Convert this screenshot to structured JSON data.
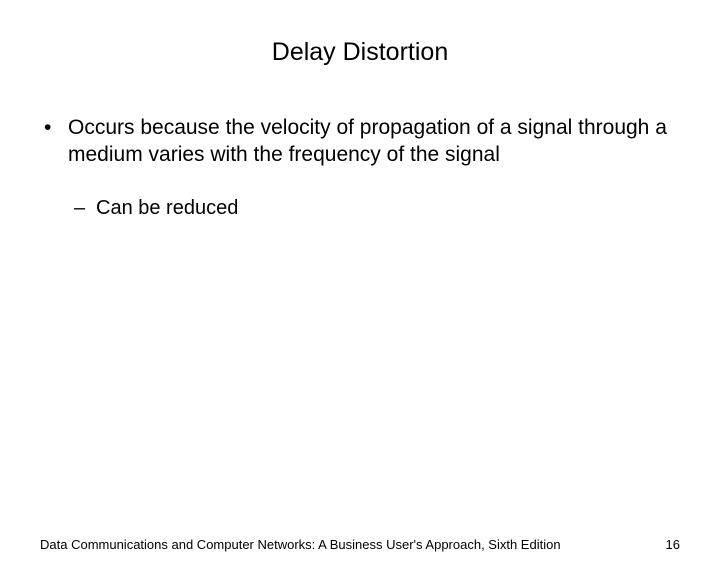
{
  "slide": {
    "title": "Delay Distortion",
    "main_bullet": "Occurs because the velocity of propagation of a signal through a medium varies with the frequency of the signal",
    "sub_bullet": "Can be reduced",
    "footer_text": "Data Communications and Computer Networks: A Business User's Approach, Sixth Edition",
    "page_number": "16"
  },
  "styling": {
    "background_color": "#ffffff",
    "text_color": "#000000",
    "title_fontsize": 25,
    "body_fontsize": 21,
    "sub_fontsize": 20,
    "footer_fontsize": 13,
    "font_family": "Arial"
  }
}
